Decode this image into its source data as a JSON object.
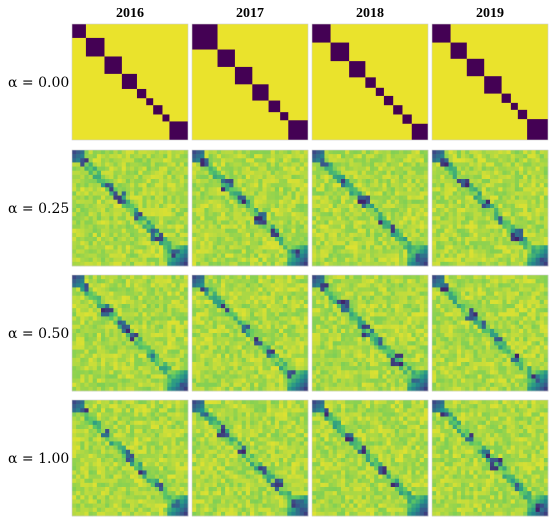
{
  "chart_data": {
    "type": "heatmap",
    "layout": "grid of similarity matrices",
    "columns": [
      "2016",
      "2017",
      "2018",
      "2019"
    ],
    "rows": [
      {
        "label": "α = 0.00",
        "alpha": 0.0
      },
      {
        "label": "α = 0.25",
        "alpha": 0.25
      },
      {
        "label": "α = 0.50",
        "alpha": 0.5
      },
      {
        "label": "α = 1.00",
        "alpha": 1.0
      }
    ],
    "colormap": "viridis",
    "colors": {
      "low": "#440154",
      "mid": "#21918c",
      "high": "#fde725"
    },
    "panels": {
      "0-0": {
        "blocks": [
          [
            0,
            0.12
          ],
          [
            0.12,
            0.28
          ],
          [
            0.28,
            0.43
          ],
          [
            0.43,
            0.56
          ],
          [
            0.56,
            0.64
          ],
          [
            0.64,
            0.7
          ],
          [
            0.7,
            0.78
          ],
          [
            0.78,
            0.84
          ],
          [
            0.84,
            1.0
          ]
        ],
        "smooth": false
      },
      "0-1": {
        "blocks": [
          [
            0,
            0.22
          ],
          [
            0.22,
            0.37
          ],
          [
            0.37,
            0.52
          ],
          [
            0.52,
            0.66
          ],
          [
            0.66,
            0.76
          ],
          [
            0.76,
            0.83
          ],
          [
            0.83,
            1.0
          ]
        ],
        "smooth": false
      },
      "0-2": {
        "blocks": [
          [
            0,
            0.16
          ],
          [
            0.16,
            0.32
          ],
          [
            0.32,
            0.46
          ],
          [
            0.46,
            0.55
          ],
          [
            0.55,
            0.62
          ],
          [
            0.62,
            0.7
          ],
          [
            0.7,
            0.78
          ],
          [
            0.78,
            0.86
          ],
          [
            0.86,
            1.0
          ]
        ],
        "smooth": false
      },
      "0-3": {
        "blocks": [
          [
            0,
            0.16
          ],
          [
            0.16,
            0.3
          ],
          [
            0.3,
            0.45
          ],
          [
            0.45,
            0.6
          ],
          [
            0.6,
            0.68
          ],
          [
            0.68,
            0.74
          ],
          [
            0.74,
            0.82
          ],
          [
            0.82,
            1.0
          ]
        ],
        "smooth": false
      },
      "1-0": {
        "smooth": true
      },
      "1-1": {
        "smooth": true
      },
      "1-2": {
        "smooth": true
      },
      "1-3": {
        "smooth": true
      },
      "2-0": {
        "smooth": true
      },
      "2-1": {
        "smooth": true
      },
      "2-2": {
        "smooth": true
      },
      "2-3": {
        "smooth": true
      },
      "3-0": {
        "smooth": true
      },
      "3-1": {
        "smooth": true
      },
      "3-2": {
        "smooth": true
      },
      "3-3": {
        "smooth": true
      }
    }
  }
}
